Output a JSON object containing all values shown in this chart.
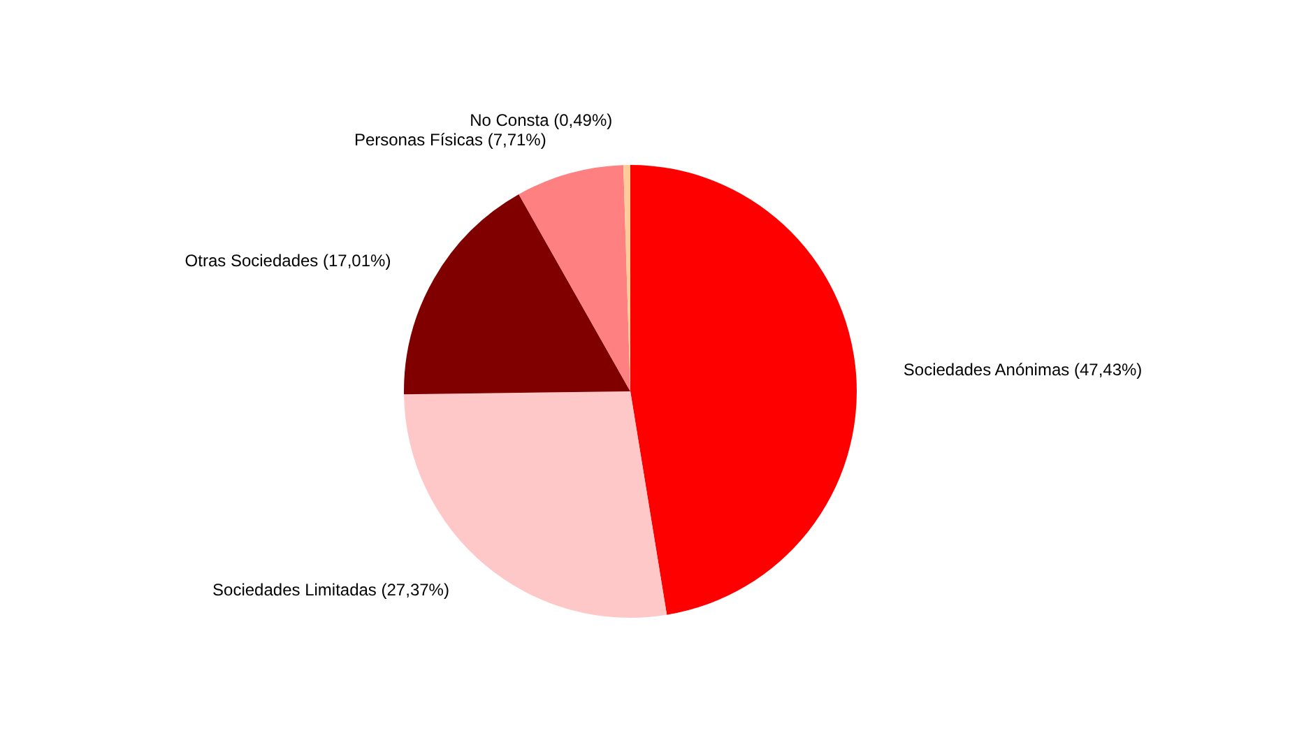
{
  "chart_data": {
    "type": "pie",
    "categories": [
      "Sociedades Anónimas",
      "Sociedades Limitadas",
      "Otras Sociedades",
      "Personas Físicas",
      "No Consta"
    ],
    "values": [
      47.43,
      27.37,
      17.01,
      7.71,
      0.49
    ],
    "value_labels": [
      "(47,43%)",
      "(27,37%)",
      "(17,01%)",
      "(7,71%)",
      "(0,49%)"
    ],
    "colors": [
      "#ff0000",
      "#ffc8c8",
      "#800000",
      "#ff8080",
      "#ffcc99"
    ],
    "legend": false
  }
}
